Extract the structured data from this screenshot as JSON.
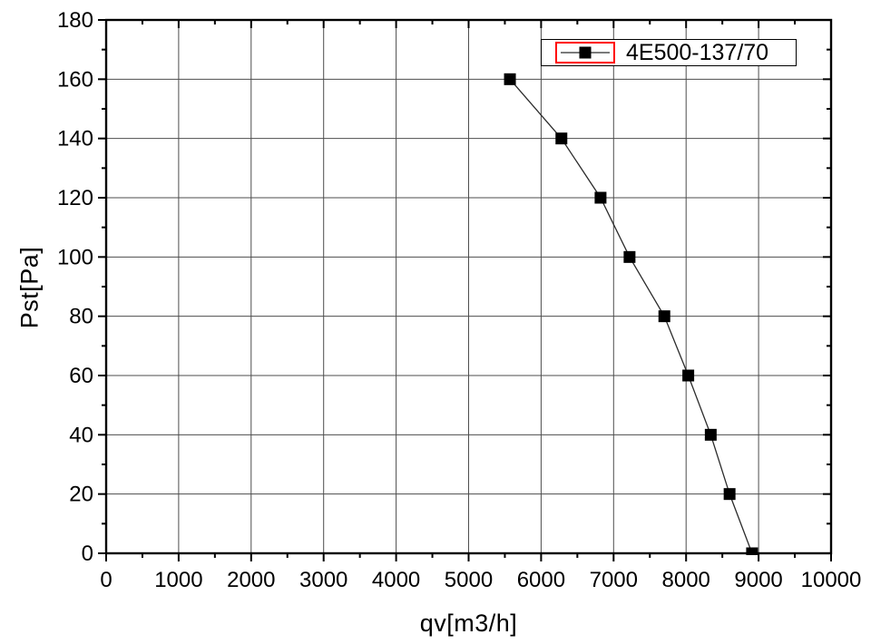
{
  "window": {
    "background": "#ffffff"
  },
  "chart_data": {
    "type": "line",
    "title": "",
    "xlabel": "qv[m3/h]",
    "ylabel": "Pst[Pa]",
    "xlim": [
      0,
      10000
    ],
    "ylim": [
      0,
      180
    ],
    "x_major_ticks": [
      0,
      1000,
      2000,
      3000,
      4000,
      5000,
      6000,
      7000,
      8000,
      9000,
      10000
    ],
    "y_major_ticks": [
      0,
      20,
      40,
      60,
      80,
      100,
      120,
      140,
      160,
      180
    ],
    "x_minor_step": 500,
    "y_minor_step": 10,
    "grid": true,
    "legend": {
      "position": "top-right",
      "border_color": "#000000",
      "highlight_color": "#ff0000",
      "entries": [
        "4E500-137/70"
      ]
    },
    "series": [
      {
        "name": "4E500-137/70",
        "marker": "square",
        "marker_color": "#000000",
        "line_style": "solid",
        "line_color": "#2b2b2b",
        "x": [
          5570,
          6280,
          6820,
          7220,
          7700,
          8030,
          8340,
          8600,
          8910
        ],
        "y": [
          160,
          140,
          120,
          100,
          80,
          60,
          40,
          20,
          0
        ]
      }
    ],
    "colors": {
      "grid": "#4d4d4d",
      "axis": "#000000",
      "tick_text": "#000000"
    }
  }
}
